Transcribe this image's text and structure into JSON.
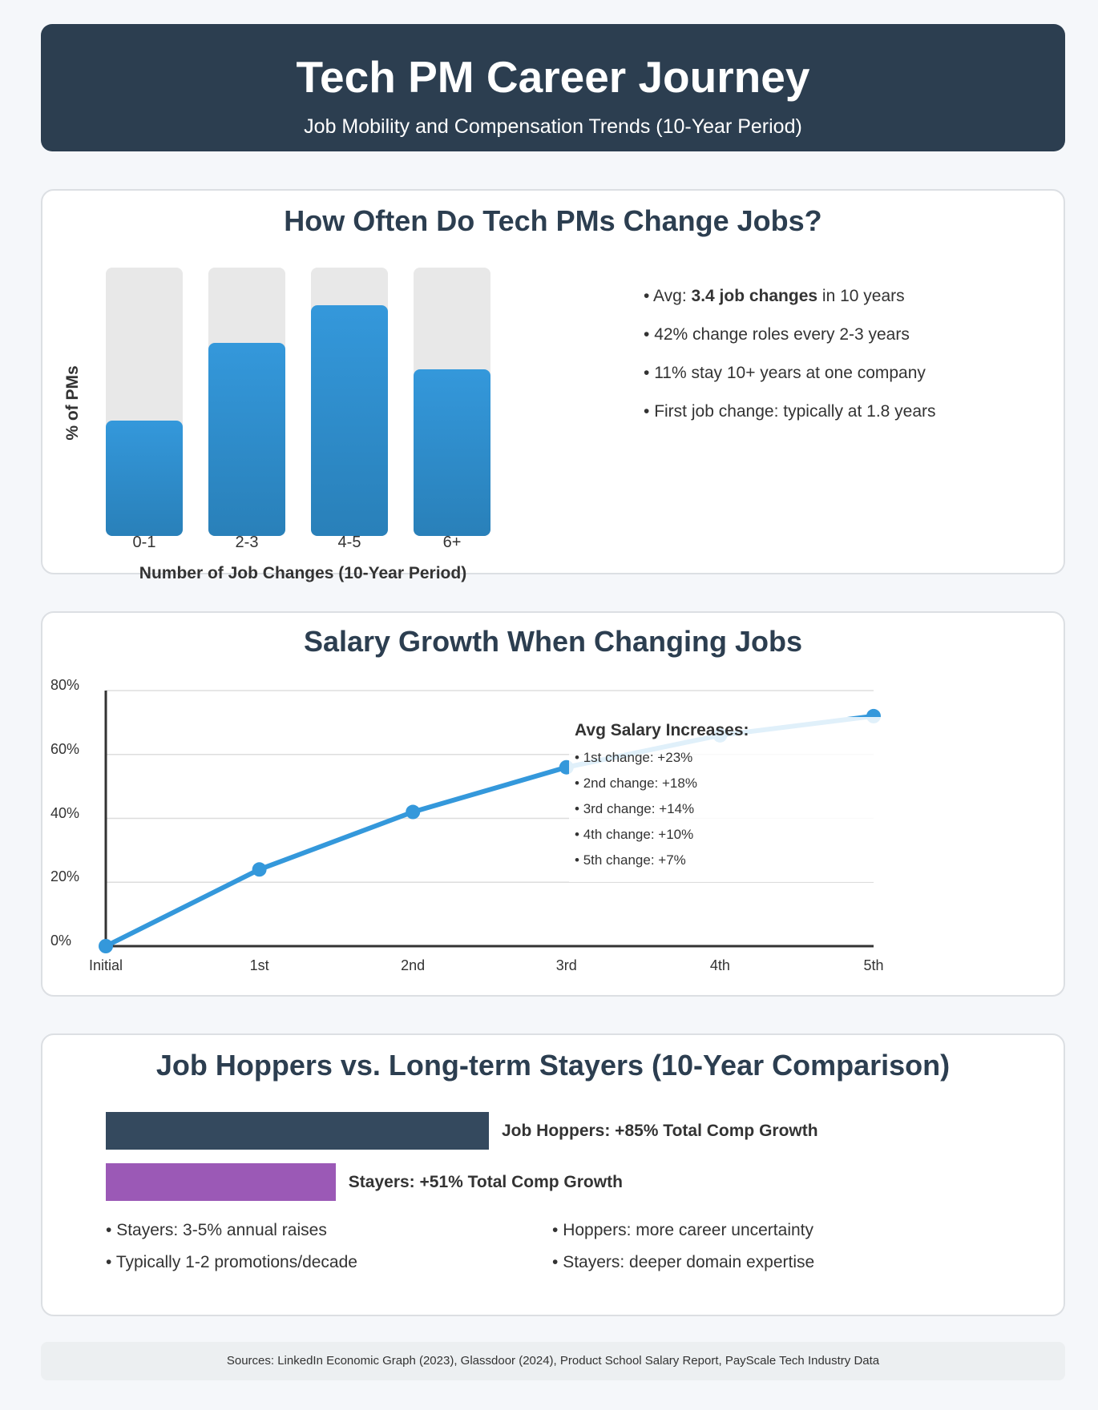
{
  "header": {
    "title": "Tech PM Career Journey",
    "subtitle": "Job Mobility and Compensation Trends (10-Year Period)"
  },
  "section1": {
    "title": "How Often Do Tech PMs Change Jobs?",
    "facts": {
      "avg_prefix": "Avg: ",
      "avg_bold": "3.4 job changes",
      "avg_suffix": " in 10 years",
      "items": [
        "42% change roles every 2-3 years",
        "11% stay 10+ years at one company",
        "First job change: typically at 1.8 years"
      ]
    }
  },
  "section2": {
    "title": "Salary Growth When Changing Jobs",
    "increases_title": "Avg Salary Increases:",
    "increases": [
      "1st change: +23%",
      "2nd change: +18%",
      "3rd change: +14%",
      "4th change: +10%",
      "5th change: +7%"
    ]
  },
  "section3": {
    "title": "Job Hoppers vs. Long-term Stayers (10-Year Comparison)",
    "hoppers_label": "Job Hoppers: +85% Total Comp Growth",
    "stayers_label": "Stayers: +51% Total Comp Growth",
    "hoppers_value": 85,
    "stayers_value": 51,
    "hoppers_color": "#34495e",
    "stayers_color": "#9b59b6",
    "notes_left": [
      "Stayers: 3-5% annual raises",
      "Typically 1-2 promotions/decade"
    ],
    "notes_right": [
      "Hoppers: more career uncertainty",
      "Stayers: deeper domain expertise"
    ]
  },
  "footer": "Sources: LinkedIn Economic Graph (2023), Glassdoor (2024), Product School Salary Report, PayScale Tech Industry Data",
  "chart_data": [
    {
      "type": "bar",
      "categories": [
        "0-1",
        "2-3",
        "4-5",
        "6+"
      ],
      "values": [
        43,
        72,
        86,
        62
      ],
      "ylim": [
        0,
        100
      ],
      "xlabel": "Number of Job Changes (10-Year Period)",
      "ylabel": "% of PMs",
      "color": "#3498db"
    },
    {
      "type": "line",
      "x": [
        "Initial",
        "1st",
        "2nd",
        "3rd",
        "4th",
        "5th"
      ],
      "y": [
        0,
        24,
        42,
        56,
        66,
        72
      ],
      "y_ticks": [
        "0%",
        "20%",
        "40%",
        "60%",
        "80%"
      ],
      "ylim": [
        0,
        80
      ],
      "grid": true,
      "color": "#3498db"
    },
    {
      "type": "bar",
      "orientation": "horizontal",
      "categories": [
        "Job Hoppers",
        "Stayers"
      ],
      "values": [
        85,
        51
      ]
    }
  ]
}
